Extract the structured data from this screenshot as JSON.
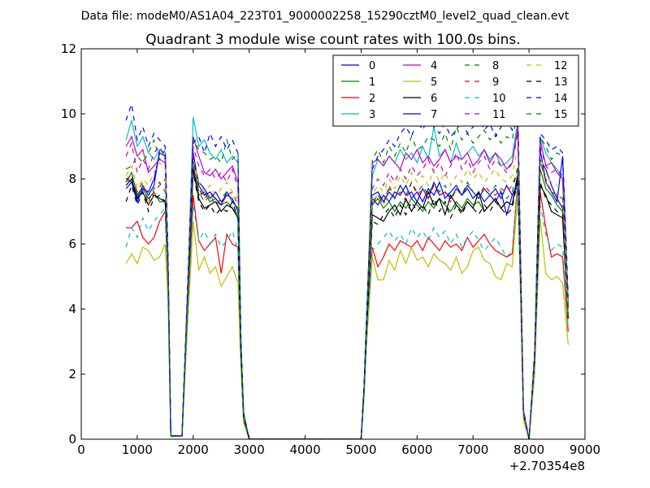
{
  "chart_data": {
    "type": "line",
    "suptitle": "Data file: modeM0/AS1A04_223T01_9000002258_15290cztM0_level2_quad_clean.evt",
    "title": "Quadrant 3 module wise count rates with 100.0s bins.",
    "xlabel": "",
    "ylabel": "",
    "x_offset_label": "+2.70354e8",
    "xlim": [
      0,
      9000
    ],
    "ylim": [
      0,
      12
    ],
    "xticks": [
      0,
      1000,
      2000,
      3000,
      4000,
      5000,
      6000,
      7000,
      8000,
      9000
    ],
    "yticks": [
      0,
      2,
      4,
      6,
      8,
      10,
      12
    ],
    "legend_position": "top-right",
    "legend_columns": 4,
    "x": [
      800,
      900,
      1000,
      1100,
      1200,
      1300,
      1400,
      1500,
      1550,
      1600,
      1800,
      1900,
      2000,
      2100,
      2200,
      2300,
      2400,
      2500,
      2600,
      2700,
      2800,
      2850,
      2900,
      3000,
      5000,
      5050,
      5100,
      5200,
      5300,
      5400,
      5500,
      5600,
      5700,
      5800,
      5900,
      6000,
      6100,
      6200,
      6300,
      6400,
      6500,
      6600,
      6700,
      6800,
      6900,
      7000,
      7100,
      7200,
      7300,
      7400,
      7500,
      7600,
      7700,
      7800,
      7850,
      7900,
      8000,
      8100,
      8200,
      8300,
      8400,
      8500,
      8600,
      8700
    ],
    "series": [
      {
        "name": "0",
        "color": "#0000ff",
        "dash": "solid",
        "values": [
          8.0,
          7.9,
          7.4,
          7.8,
          7.5,
          7.8,
          8.9,
          8.8,
          5.5,
          0.1,
          0.1,
          4.5,
          8.6,
          7.9,
          7.7,
          7.4,
          7.6,
          7.3,
          7.5,
          7.4,
          7.0,
          3.0,
          0.8,
          0,
          0,
          1.5,
          3.6,
          7.4,
          7.2,
          7.5,
          7.3,
          7.6,
          7.5,
          7.8,
          7.4,
          7.6,
          7.3,
          7.7,
          7.5,
          7.9,
          7.4,
          7.6,
          7.8,
          7.5,
          7.7,
          7.4,
          7.6,
          7.3,
          7.5,
          7.7,
          7.4,
          7.8,
          7.5,
          7.8,
          5.0,
          0.8,
          0,
          2.5,
          8.6,
          8.3,
          7.8,
          7.4,
          7.1,
          4.0
        ]
      },
      {
        "name": "1",
        "color": "#008000",
        "dash": "solid",
        "values": [
          7.9,
          8.2,
          7.5,
          7.7,
          7.4,
          7.6,
          7.3,
          7.3,
          5.2,
          0.1,
          0.1,
          4.3,
          8.4,
          7.5,
          7.6,
          7.3,
          7.4,
          7.2,
          7.3,
          7.1,
          6.9,
          2.9,
          0.7,
          0,
          0,
          1.4,
          3.5,
          7.2,
          7.4,
          7.1,
          7.3,
          7.0,
          7.3,
          7.1,
          7.4,
          7.2,
          7.0,
          7.3,
          7.1,
          7.4,
          7.2,
          7.0,
          7.3,
          7.1,
          7.4,
          7.2,
          7.3,
          7.0,
          7.2,
          7.4,
          7.1,
          7.3,
          7.2,
          8.2,
          4.9,
          0.8,
          0,
          2.4,
          8.3,
          7.7,
          7.5,
          7.2,
          7.0,
          3.8
        ]
      },
      {
        "name": "2",
        "color": "#ff0000",
        "dash": "solid",
        "values": [
          6.5,
          6.5,
          6.7,
          6.2,
          6.0,
          6.2,
          6.7,
          7.0,
          4.8,
          0.1,
          0.1,
          3.8,
          7.5,
          6.1,
          5.8,
          6.0,
          6.2,
          5.1,
          6.3,
          6.0,
          5.9,
          2.5,
          0.6,
          0,
          0,
          1.3,
          3.2,
          5.9,
          5.3,
          5.6,
          6.0,
          5.8,
          6.1,
          6.0,
          5.9,
          6.1,
          5.8,
          6.2,
          6.0,
          5.8,
          6.1,
          5.9,
          6.0,
          5.8,
          6.2,
          5.9,
          6.1,
          6.3,
          6.0,
          5.8,
          5.7,
          5.6,
          5.7,
          8.0,
          4.6,
          0.7,
          0,
          2.2,
          7.6,
          6.5,
          5.6,
          5.7,
          5.6,
          3.3
        ]
      },
      {
        "name": "3",
        "color": "#00bfbf",
        "dash": "solid",
        "values": [
          9.2,
          9.8,
          9.0,
          9.3,
          8.8,
          8.6,
          8.9,
          8.8,
          5.6,
          0.1,
          0.1,
          4.6,
          9.9,
          9.0,
          9.2,
          8.8,
          8.6,
          8.9,
          8.5,
          8.7,
          8.5,
          3.2,
          0.8,
          0,
          0,
          1.5,
          3.8,
          8.1,
          8.6,
          8.4,
          8.7,
          8.5,
          8.9,
          8.6,
          8.8,
          8.5,
          9.0,
          8.6,
          9.6,
          8.7,
          8.9,
          8.5,
          9.1,
          8.6,
          8.8,
          9.0,
          8.7,
          8.9,
          8.6,
          8.8,
          8.4,
          8.5,
          8.7,
          9.8,
          5.4,
          0.9,
          0,
          2.6,
          9.3,
          8.8,
          8.5,
          8.3,
          8.0,
          4.2
        ]
      },
      {
        "name": "4",
        "color": "#bf00bf",
        "dash": "solid",
        "values": [
          9.0,
          9.3,
          8.7,
          8.9,
          8.2,
          8.4,
          8.6,
          8.5,
          5.4,
          0.1,
          0.1,
          4.5,
          9.3,
          8.7,
          8.2,
          8.1,
          8.3,
          8.0,
          8.2,
          8.4,
          7.9,
          3.1,
          0.8,
          0,
          0,
          1.5,
          3.7,
          8.5,
          8.6,
          8.4,
          8.7,
          8.5,
          8.3,
          8.8,
          8.6,
          8.9,
          8.5,
          8.7,
          8.4,
          8.6,
          8.9,
          8.5,
          8.7,
          8.6,
          8.8,
          8.4,
          8.6,
          8.9,
          8.5,
          8.8,
          8.6,
          8.3,
          8.5,
          9.6,
          5.3,
          0.9,
          0,
          2.6,
          9.2,
          8.4,
          8.5,
          8.2,
          8.0,
          4.1
        ]
      },
      {
        "name": "5",
        "color": "#bfbf00",
        "dash": "solid",
        "values": [
          5.4,
          5.7,
          5.4,
          5.9,
          5.8,
          5.5,
          5.6,
          6.0,
          4.2,
          0.1,
          0.1,
          3.5,
          6.7,
          5.2,
          5.6,
          5.1,
          5.3,
          4.7,
          5.0,
          5.3,
          4.8,
          2.3,
          0.5,
          0,
          0,
          1.2,
          3.0,
          5.6,
          4.9,
          4.9,
          5.5,
          5.2,
          5.8,
          5.4,
          5.9,
          5.5,
          5.6,
          5.3,
          5.7,
          5.5,
          5.4,
          5.2,
          5.6,
          5.1,
          5.3,
          5.8,
          5.9,
          5.5,
          5.4,
          5.0,
          4.9,
          5.4,
          5.3,
          7.5,
          4.3,
          0.6,
          0,
          2.0,
          6.8,
          5.1,
          4.9,
          5.0,
          4.8,
          2.9
        ]
      },
      {
        "name": "6",
        "color": "#000000",
        "dash": "solid",
        "values": [
          7.8,
          8.0,
          7.4,
          7.6,
          7.2,
          7.5,
          7.4,
          7.3,
          5.1,
          0.1,
          0.1,
          4.2,
          8.3,
          7.4,
          7.1,
          7.2,
          7.3,
          7.0,
          7.2,
          7.1,
          6.8,
          2.8,
          0.7,
          0,
          0,
          1.4,
          3.4,
          6.9,
          6.8,
          6.7,
          7.0,
          7.2,
          6.9,
          7.4,
          7.0,
          7.3,
          7.1,
          7.6,
          7.2,
          7.4,
          6.9,
          7.5,
          7.2,
          7.0,
          7.3,
          7.1,
          7.6,
          7.0,
          7.2,
          7.4,
          7.1,
          7.3,
          7.2,
          8.1,
          4.8,
          0.8,
          0,
          2.4,
          7.8,
          7.5,
          7.0,
          6.9,
          6.8,
          3.7
        ]
      },
      {
        "name": "7",
        "color": "#0000ff",
        "dash": "solid",
        "values": [
          7.7,
          7.9,
          7.3,
          7.7,
          7.6,
          8.0,
          8.8,
          8.7,
          5.4,
          0.1,
          0.1,
          4.4,
          8.8,
          7.8,
          7.5,
          7.6,
          7.4,
          7.2,
          7.6,
          7.3,
          7.1,
          3.0,
          0.8,
          0,
          0,
          1.5,
          3.6,
          7.5,
          7.6,
          7.3,
          7.6,
          7.4,
          7.8,
          7.5,
          7.6,
          7.3,
          7.7,
          7.4,
          7.9,
          7.5,
          7.6,
          7.4,
          7.7,
          7.5,
          7.8,
          7.6,
          7.4,
          7.7,
          7.5,
          7.3,
          7.6,
          6.9,
          7.5,
          7.9,
          4.9,
          0.8,
          0,
          2.5,
          8.9,
          7.9,
          7.6,
          7.3,
          8.7,
          4.0
        ]
      },
      {
        "name": "8",
        "color": "#008000",
        "dash": "dashed",
        "values": [
          8.3,
          8.4,
          8.7,
          8.5,
          8.8,
          9.2,
          8.6,
          8.9,
          5.6,
          0.1,
          0.1,
          4.6,
          9.2,
          8.9,
          8.8,
          8.6,
          8.7,
          8.5,
          9.2,
          8.6,
          8.8,
          3.2,
          0.8,
          0,
          0,
          1.5,
          3.8,
          8.6,
          8.9,
          8.5,
          9.0,
          8.7,
          9.1,
          8.8,
          9.3,
          8.9,
          9.0,
          9.3,
          9.2,
          9.0,
          9.4,
          8.9,
          9.6,
          9.2,
          9.4,
          9.1,
          9.3,
          9.5,
          9.2,
          9.4,
          9.1,
          9.3,
          9.2,
          10.1,
          5.5,
          0.9,
          0,
          2.7,
          9.3,
          9.0,
          8.6,
          8.8,
          8.7,
          4.3
        ]
      },
      {
        "name": "9",
        "color": "#ff0000",
        "dash": "dashed",
        "values": [
          8.0,
          8.1,
          7.6,
          7.9,
          7.2,
          7.6,
          7.8,
          8.0,
          5.3,
          0.1,
          0.1,
          4.3,
          8.4,
          7.7,
          7.4,
          7.6,
          7.3,
          7.2,
          7.5,
          7.6,
          7.2,
          2.9,
          0.7,
          0,
          0,
          1.4,
          3.5,
          7.3,
          7.5,
          7.2,
          7.8,
          7.4,
          7.6,
          7.3,
          7.9,
          7.5,
          7.7,
          7.4,
          7.8,
          7.5,
          7.6,
          7.3,
          7.7,
          7.5,
          7.9,
          7.6,
          7.4,
          7.8,
          7.6,
          7.5,
          7.7,
          7.6,
          7.8,
          8.3,
          4.9,
          0.8,
          0,
          2.5,
          8.5,
          8.0,
          7.6,
          7.5,
          7.4,
          3.9
        ]
      },
      {
        "name": "10",
        "color": "#00bfbf",
        "dash": "dashed",
        "values": [
          5.9,
          6.5,
          6.2,
          6.8,
          6.4,
          6.7,
          6.9,
          7.1,
          4.8,
          0.1,
          0.1,
          3.9,
          7.2,
          6.1,
          6.4,
          6.0,
          6.3,
          5.9,
          6.1,
          6.4,
          5.8,
          2.6,
          0.6,
          0,
          0,
          1.3,
          3.2,
          5.8,
          6.0,
          6.2,
          6.4,
          6.1,
          6.3,
          6.0,
          6.5,
          6.2,
          6.4,
          6.1,
          6.5,
          6.2,
          6.4,
          6.0,
          6.3,
          5.9,
          6.2,
          6.4,
          6.1,
          5.8,
          6.0,
          6.2,
          5.9,
          5.6,
          5.8,
          7.9,
          4.6,
          0.7,
          0,
          2.2,
          7.2,
          6.3,
          5.8,
          6.0,
          5.9,
          3.4
        ]
      },
      {
        "name": "11",
        "color": "#bf00bf",
        "dash": "dashed",
        "values": [
          8.7,
          9.1,
          8.2,
          8.6,
          8.3,
          8.8,
          9.0,
          8.6,
          5.5,
          0.1,
          0.1,
          4.5,
          9.0,
          8.4,
          8.1,
          8.3,
          8.0,
          8.2,
          7.9,
          8.3,
          7.7,
          3.0,
          0.8,
          0,
          0,
          1.5,
          3.7,
          7.7,
          8.0,
          7.8,
          8.2,
          7.9,
          8.3,
          8.0,
          8.4,
          8.1,
          8.3,
          8.6,
          8.2,
          8.5,
          8.1,
          8.4,
          8.8,
          8.3,
          8.6,
          8.2,
          8.5,
          8.7,
          8.3,
          8.6,
          8.4,
          8.2,
          8.5,
          9.4,
          5.2,
          0.9,
          0,
          2.6,
          9.0,
          8.4,
          8.2,
          8.3,
          8.1,
          4.0
        ]
      },
      {
        "name": "12",
        "color": "#bfbf00",
        "dash": "dashed",
        "values": [
          8.1,
          8.4,
          7.7,
          8.0,
          7.8,
          8.2,
          8.5,
          8.3,
          5.3,
          0.1,
          0.1,
          4.4,
          8.6,
          7.9,
          7.6,
          7.8,
          7.5,
          7.7,
          7.9,
          7.6,
          7.4,
          2.9,
          0.7,
          0,
          0,
          1.4,
          3.6,
          7.5,
          7.8,
          7.6,
          8.0,
          7.7,
          8.1,
          7.8,
          8.2,
          7.9,
          8.1,
          7.8,
          8.3,
          7.9,
          8.2,
          7.8,
          8.1,
          7.9,
          8.3,
          8.0,
          8.2,
          7.9,
          8.1,
          8.3,
          8.0,
          7.9,
          8.1,
          9.0,
          5.0,
          0.8,
          0,
          2.5,
          8.7,
          8.1,
          7.9,
          7.8,
          7.7,
          3.9
        ]
      },
      {
        "name": "13",
        "color": "#000000",
        "dash": "dashed",
        "values": [
          7.3,
          7.8,
          7.2,
          7.6,
          7.0,
          7.4,
          7.5,
          7.3,
          5.0,
          0.1,
          0.1,
          4.1,
          8.2,
          7.3,
          7.0,
          7.2,
          6.9,
          7.1,
          7.0,
          7.3,
          6.8,
          2.8,
          0.7,
          0,
          0,
          1.4,
          3.4,
          6.7,
          6.6,
          6.9,
          7.1,
          6.8,
          7.2,
          6.9,
          7.3,
          7.0,
          7.2,
          6.9,
          7.4,
          7.0,
          7.3,
          6.8,
          7.2,
          6.9,
          7.3,
          7.1,
          6.9,
          7.2,
          7.0,
          7.3,
          7.1,
          6.9,
          7.1,
          8.0,
          4.8,
          0.8,
          0,
          2.4,
          7.9,
          7.4,
          7.2,
          7.0,
          6.9,
          3.7
        ]
      },
      {
        "name": "14",
        "color": "#0000ff",
        "dash": "dashed",
        "values": [
          9.8,
          10.3,
          9.2,
          9.6,
          9.0,
          9.4,
          9.2,
          9.0,
          5.7,
          0.1,
          0.1,
          4.7,
          9.1,
          9.3,
          8.8,
          9.4,
          9.0,
          9.3,
          8.9,
          9.2,
          8.8,
          3.3,
          0.8,
          0,
          0,
          1.6,
          3.9,
          8.3,
          8.7,
          8.9,
          9.2,
          9.0,
          9.4,
          9.6,
          9.3,
          9.8,
          9.5,
          9.9,
          9.6,
          9.4,
          9.7,
          9.3,
          9.5,
          9.8,
          9.4,
          9.6,
          9.9,
          9.5,
          9.7,
          9.3,
          9.6,
          9.8,
          9.5,
          10.0,
          5.6,
          0.9,
          0,
          2.7,
          9.4,
          9.2,
          8.9,
          9.0,
          8.8,
          4.4
        ]
      },
      {
        "name": "15",
        "color": "#008000",
        "dash": "dashed",
        "values": [
          7.9,
          8.1,
          7.5,
          7.8,
          7.3,
          7.7,
          7.9,
          7.6,
          5.2,
          0.1,
          0.1,
          4.3,
          8.5,
          7.6,
          7.3,
          7.5,
          7.2,
          7.4,
          7.6,
          7.3,
          7.1,
          2.9,
          0.7,
          0,
          0,
          1.4,
          3.5,
          7.2,
          7.5,
          7.3,
          7.7,
          7.4,
          7.8,
          7.5,
          7.9,
          7.6,
          7.8,
          7.5,
          7.9,
          7.6,
          7.8,
          7.4,
          7.7,
          7.5,
          7.9,
          7.6,
          7.4,
          7.7,
          7.5,
          7.8,
          7.6,
          7.4,
          7.6,
          8.4,
          4.9,
          0.8,
          0,
          2.5,
          8.6,
          7.9,
          7.6,
          7.5,
          7.4,
          3.8
        ]
      }
    ]
  }
}
